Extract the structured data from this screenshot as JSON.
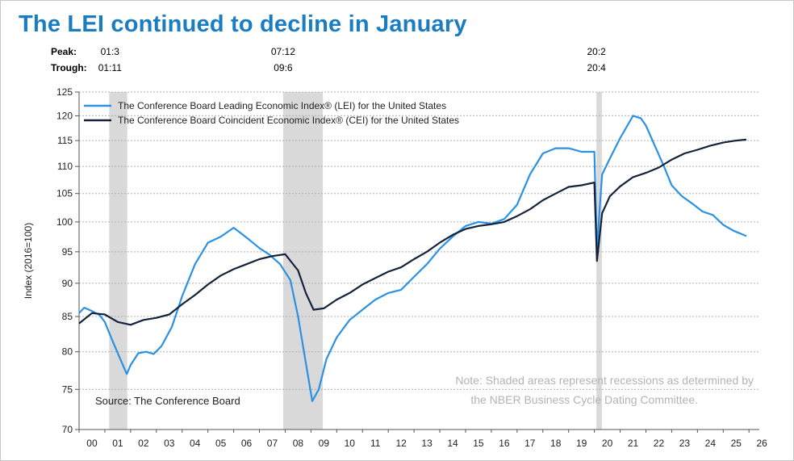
{
  "page": {
    "title": "The LEI continued to decline in January"
  },
  "header": {
    "peak_label": "Peak:",
    "trough_label": "Trough:",
    "cycles": [
      {
        "peak": "01:3",
        "trough": "01:11",
        "x": 2001.2
      },
      {
        "peak": "07:12",
        "trough": "09:6",
        "x": 2007.92
      },
      {
        "peak": "20:2",
        "trough": "20:4",
        "x": 2020.08
      }
    ]
  },
  "notes": {
    "source": "Source: The Conference Board",
    "note_line1": "Note: Shaded areas represent recessions as determined by",
    "note_line2": "the NBER Business Cycle Dating Committee."
  },
  "colors": {
    "lei": "#2b91e3",
    "cei": "#14233b",
    "recession": "#d9d9d9",
    "grid": "#b0b0b0"
  },
  "chart_data": {
    "type": "line",
    "title": "The LEI continued to decline in January",
    "ylabel": "Index (2016=100)",
    "xlabel": "",
    "ylim": [
      70,
      125
    ],
    "yticks": [
      70,
      75,
      80,
      85,
      90,
      95,
      100,
      105,
      110,
      115,
      120,
      125
    ],
    "y_scale": "log",
    "x_range": [
      2000,
      2026.4
    ],
    "x_tick_labels": [
      "00",
      "01",
      "02",
      "03",
      "04",
      "05",
      "06",
      "07",
      "08",
      "09",
      "10",
      "11",
      "12",
      "13",
      "14",
      "15",
      "16",
      "17",
      "18",
      "19",
      "20",
      "21",
      "22",
      "23",
      "24",
      "25",
      "26"
    ],
    "grid": "horizontal dashed",
    "legend_position": "top-left",
    "recessions": [
      {
        "start": 2001.17,
        "end": 2001.87
      },
      {
        "start": 2007.92,
        "end": 2009.46
      },
      {
        "start": 2020.08,
        "end": 2020.29
      }
    ],
    "series": [
      {
        "name": "The Conference Board Leading Economic Index® (LEI) for the United States",
        "x": [
          2000.0,
          2000.2,
          2000.5,
          2000.8,
          2001.0,
          2001.3,
          2001.6,
          2001.85,
          2002.0,
          2002.3,
          2002.6,
          2002.9,
          2003.2,
          2003.6,
          2004.0,
          2004.5,
          2005.0,
          2005.5,
          2006.0,
          2006.3,
          2006.6,
          2007.0,
          2007.4,
          2007.8,
          2008.2,
          2008.5,
          2008.8,
          2009.05,
          2009.3,
          2009.6,
          2010.0,
          2010.5,
          2011.0,
          2011.5,
          2012.0,
          2012.5,
          2013.0,
          2013.5,
          2014.0,
          2014.5,
          2015.0,
          2015.5,
          2016.0,
          2016.5,
          2017.0,
          2017.5,
          2018.0,
          2018.5,
          2019.0,
          2019.5,
          2020.0,
          2020.1,
          2020.2,
          2020.3,
          2020.6,
          2021.0,
          2021.5,
          2021.8,
          2022.0,
          2022.3,
          2022.7,
          2023.0,
          2023.4,
          2023.8,
          2024.2,
          2024.6,
          2025.0,
          2025.4,
          2025.9
        ],
        "values": [
          85.5,
          86.3,
          85.8,
          85.2,
          84.2,
          81.5,
          79.0,
          77.0,
          78.2,
          79.8,
          80.0,
          79.7,
          80.8,
          83.5,
          88.0,
          93.0,
          96.5,
          97.5,
          99.0,
          98.0,
          97.0,
          95.6,
          94.5,
          93.0,
          90.5,
          85.0,
          78.5,
          73.5,
          75.0,
          79.0,
          82.0,
          84.5,
          86.0,
          87.5,
          88.5,
          89.0,
          91.0,
          93.0,
          95.5,
          97.5,
          99.3,
          100.0,
          99.7,
          100.5,
          103.0,
          108.5,
          112.5,
          113.5,
          113.5,
          112.8,
          112.8,
          95.0,
          102.0,
          108.5,
          111.5,
          115.5,
          120.0,
          119.5,
          118.0,
          114.5,
          110.0,
          106.5,
          104.5,
          103.2,
          101.8,
          101.2,
          99.5,
          98.5,
          97.6
        ]
      },
      {
        "name": "The Conference Board Coincident Economic Index® (CEI) for the United States",
        "x": [
          2000.0,
          2000.5,
          2001.0,
          2001.5,
          2002.0,
          2002.5,
          2003.0,
          2003.5,
          2004.0,
          2004.5,
          2005.0,
          2005.5,
          2006.0,
          2006.5,
          2007.0,
          2007.5,
          2008.0,
          2008.5,
          2008.8,
          2009.1,
          2009.5,
          2010.0,
          2010.5,
          2011.0,
          2011.5,
          2012.0,
          2012.5,
          2013.0,
          2013.5,
          2014.0,
          2014.5,
          2015.0,
          2015.5,
          2016.0,
          2016.5,
          2017.0,
          2017.5,
          2018.0,
          2018.5,
          2019.0,
          2019.5,
          2020.0,
          2020.1,
          2020.3,
          2020.6,
          2021.0,
          2021.5,
          2022.0,
          2022.5,
          2023.0,
          2023.5,
          2024.0,
          2024.5,
          2025.0,
          2025.5,
          2025.9
        ],
        "values": [
          84.0,
          85.5,
          85.3,
          84.2,
          83.8,
          84.5,
          84.8,
          85.3,
          86.8,
          88.2,
          89.8,
          91.2,
          92.2,
          93.0,
          93.8,
          94.3,
          94.6,
          92.0,
          88.5,
          86.0,
          86.2,
          87.5,
          88.5,
          89.8,
          90.8,
          91.8,
          92.5,
          93.8,
          95.0,
          96.5,
          97.8,
          98.8,
          99.3,
          99.6,
          100.0,
          101.0,
          102.2,
          103.8,
          105.0,
          106.2,
          106.5,
          107.0,
          93.5,
          101.5,
          104.5,
          106.3,
          108.0,
          108.8,
          109.8,
          111.3,
          112.5,
          113.2,
          114.0,
          114.6,
          115.0,
          115.2
        ]
      }
    ]
  }
}
